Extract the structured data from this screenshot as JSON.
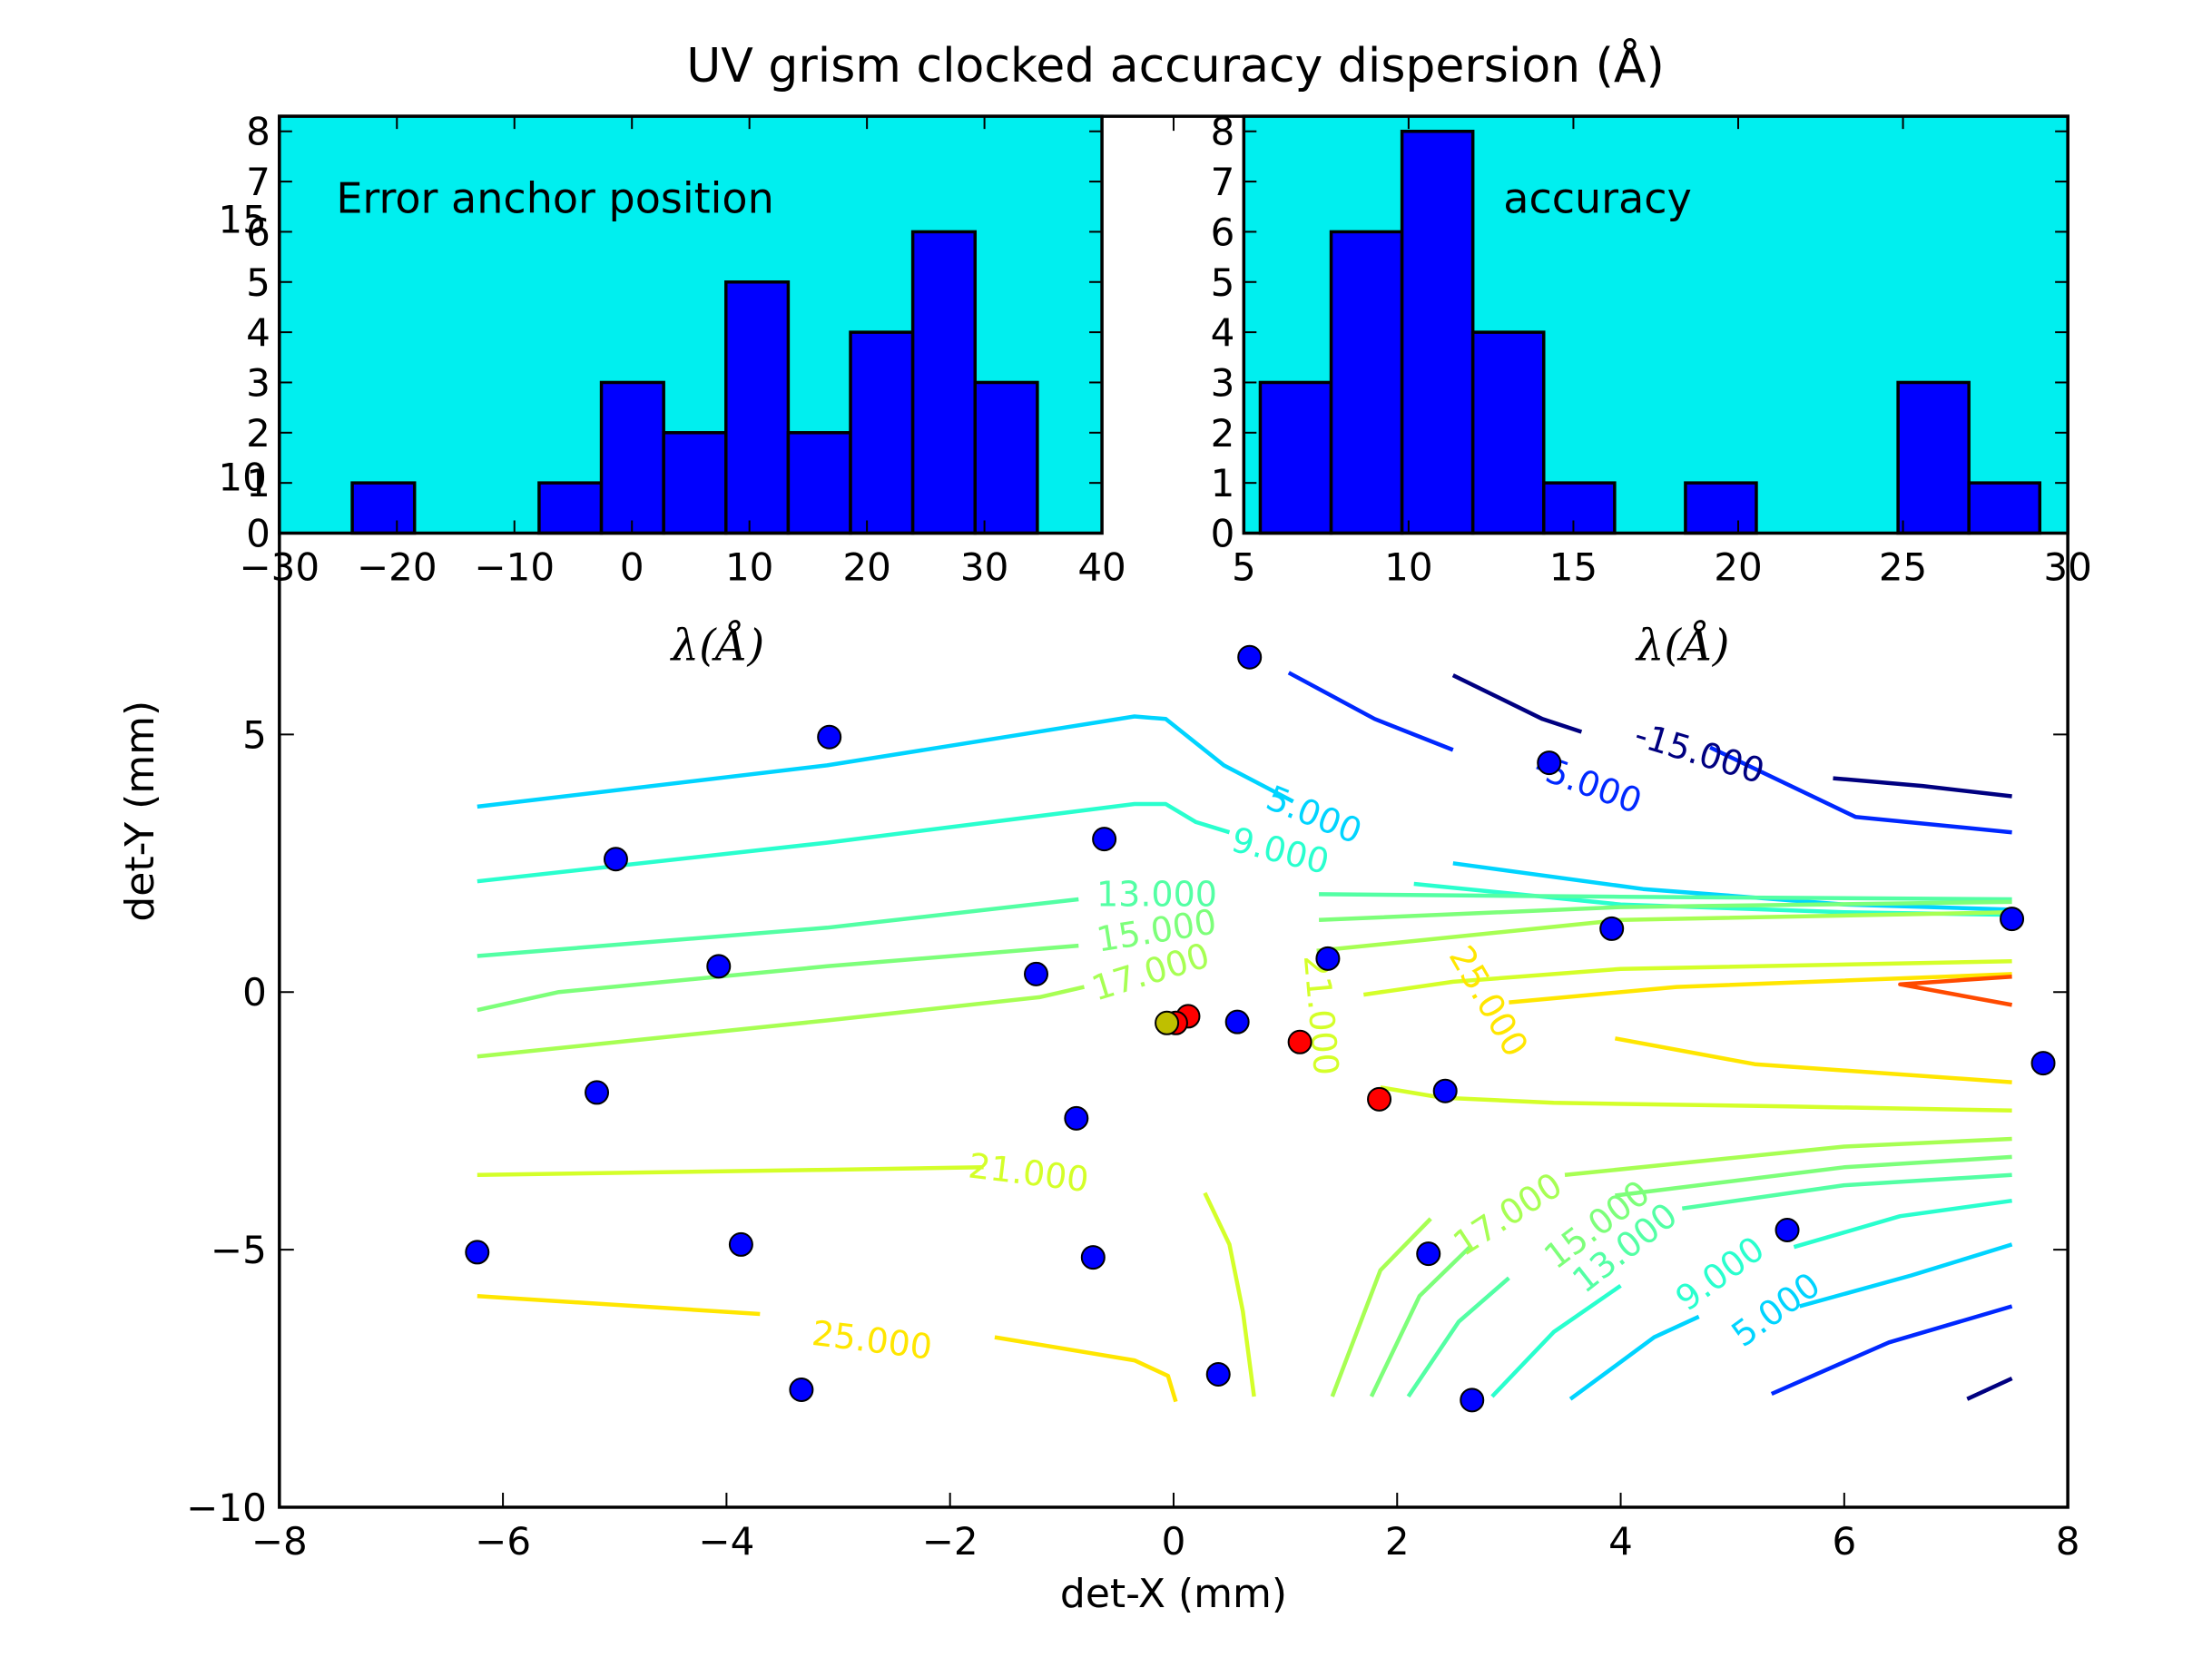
{
  "chart_data": [
    {
      "id": "main",
      "type": "scatter",
      "title": "UV grism clocked accuracy dispersion (Å)",
      "xlabel": "det-X (mm)",
      "ylabel": "det-Y (mm)",
      "xlim": [
        -8,
        8
      ],
      "ylim": [
        -10,
        17
      ],
      "xticks": [
        -8,
        -6,
        -4,
        -2,
        0,
        2,
        4,
        6,
        8
      ],
      "xtick_labels": [
        "−8",
        "−6",
        "−4",
        "−2",
        "0",
        "2",
        "4",
        "6",
        "8"
      ],
      "yticks": [
        -10,
        -5,
        0,
        5,
        10,
        15
      ],
      "ytick_labels": [
        "−10",
        "−5",
        "0",
        "5",
        "10",
        "15"
      ],
      "grid": false,
      "series": [
        {
          "name": "blue points",
          "color": "#0000ff",
          "points": [
            [
              0.68,
              6.5
            ],
            [
              -3.08,
              4.95
            ],
            [
              3.36,
              4.45
            ],
            [
              -0.62,
              2.97
            ],
            [
              -4.99,
              2.58
            ],
            [
              3.92,
              1.23
            ],
            [
              7.5,
              1.42
            ],
            [
              -4.07,
              0.5
            ],
            [
              -1.23,
              0.35
            ],
            [
              1.38,
              0.65
            ],
            [
              0.57,
              -0.58
            ],
            [
              7.78,
              -1.38
            ],
            [
              -5.16,
              -1.95
            ],
            [
              2.43,
              -1.92
            ],
            [
              -0.87,
              -2.45
            ],
            [
              -6.23,
              -5.05
            ],
            [
              -3.87,
              -4.9
            ],
            [
              -0.72,
              -5.15
            ],
            [
              2.28,
              -5.08
            ],
            [
              5.49,
              -4.62
            ],
            [
              -3.33,
              -7.72
            ],
            [
              0.4,
              -7.42
            ],
            [
              2.67,
              -7.92
            ]
          ]
        },
        {
          "name": "red points",
          "color": "#ff0000",
          "points": [
            [
              0.13,
              -0.47
            ],
            [
              0.02,
              -0.6
            ],
            [
              1.13,
              -0.97
            ],
            [
              1.84,
              -2.08
            ]
          ]
        },
        {
          "name": "olive point",
          "color": "#bfbf00",
          "points": [
            [
              -0.06,
              -0.6
            ]
          ]
        }
      ],
      "contours": [
        {
          "level": -15,
          "label": "-15.000",
          "color": "#000080",
          "segments": [
            [
              [
                2.5,
                6.15
              ],
              [
                3.3,
                5.3
              ],
              [
                3.65,
                5.05
              ]
            ],
            [
              [
                5.9,
                4.15
              ],
              [
                6.7,
                4.0
              ],
              [
                7.5,
                3.8
              ]
            ],
            [
              [
                7.1,
                -7.9
              ],
              [
                7.5,
                -7.5
              ]
            ]
          ]
        },
        {
          "level": -5,
          "label": "-5.000",
          "color": "#0028ff",
          "segments": [
            [
              [
                1.03,
                6.2
              ],
              [
                1.8,
                5.3
              ],
              [
                2.5,
                4.7
              ]
            ],
            [
              [
                4.8,
                4.75
              ],
              [
                6.1,
                3.4
              ],
              [
                7.5,
                3.1
              ]
            ],
            [
              [
                5.35,
                -7.8
              ],
              [
                6.4,
                -6.8
              ],
              [
                7.5,
                -6.1
              ]
            ]
          ]
        },
        {
          "level": 5,
          "label": "5.000",
          "color": "#00d4ff",
          "segments": [
            [
              [
                -6.23,
                3.6
              ],
              [
                -3.1,
                4.4
              ],
              [
                -0.35,
                5.35
              ],
              [
                -0.07,
                5.3
              ],
              [
                0.45,
                4.4
              ],
              [
                1.07,
                3.7
              ]
            ],
            [
              [
                2.5,
                2.5
              ],
              [
                4.2,
                2.0
              ],
              [
                6.0,
                1.7
              ],
              [
                7.5,
                1.6
              ]
            ],
            [
              [
                3.55,
                -7.9
              ],
              [
                4.3,
                -6.7
              ],
              [
                4.7,
                -6.3
              ]
            ],
            [
              [
                5.6,
                -6.1
              ],
              [
                6.6,
                -5.5
              ],
              [
                7.5,
                -4.9
              ]
            ]
          ]
        },
        {
          "level": 9,
          "label": "9.000",
          "color": "#29ffce",
          "segments": [
            [
              [
                -6.23,
                2.15
              ],
              [
                -3.1,
                2.9
              ],
              [
                -0.35,
                3.65
              ],
              [
                -0.07,
                3.65
              ],
              [
                0.2,
                3.3
              ],
              [
                0.5,
                3.1
              ]
            ],
            [
              [
                2.15,
                2.1
              ],
              [
                4.0,
                1.7
              ],
              [
                6.0,
                1.55
              ],
              [
                7.5,
                1.5
              ]
            ],
            [
              [
                2.85,
                -7.85
              ],
              [
                3.4,
                -6.6
              ],
              [
                4.0,
                -5.7
              ]
            ],
            [
              [
                5.55,
                -4.95
              ],
              [
                6.5,
                -4.35
              ],
              [
                7.5,
                -4.05
              ]
            ]
          ]
        },
        {
          "level": 13,
          "label": "13.000",
          "color": "#53ffa4",
          "segments": [
            [
              [
                -6.23,
                0.7
              ],
              [
                -3.1,
                1.25
              ],
              [
                -0.85,
                1.8
              ]
            ],
            [
              [
                1.3,
                1.9
              ],
              [
                4.0,
                1.85
              ],
              [
                7.5,
                1.8
              ]
            ],
            [
              [
                2.1,
                -7.85
              ],
              [
                2.55,
                -6.4
              ],
              [
                3.0,
                -5.55
              ]
            ],
            [
              [
                4.55,
                -4.2
              ],
              [
                6.0,
                -3.75
              ],
              [
                7.5,
                -3.55
              ]
            ]
          ]
        },
        {
          "level": 15,
          "label": "15.000",
          "color": "#7dff7a",
          "segments": [
            [
              [
                -6.23,
                -0.35
              ],
              [
                -5.5,
                0.0
              ],
              [
                -3.1,
                0.5
              ],
              [
                -0.85,
                0.9
              ]
            ],
            [
              [
                1.3,
                1.4
              ],
              [
                4.0,
                1.65
              ],
              [
                7.5,
                1.75
              ]
            ],
            [
              [
                1.77,
                -7.85
              ],
              [
                2.2,
                -5.9
              ],
              [
                2.65,
                -4.95
              ]
            ],
            [
              [
                3.95,
                -3.95
              ],
              [
                6.0,
                -3.4
              ],
              [
                7.5,
                -3.2
              ]
            ]
          ]
        },
        {
          "level": 17,
          "label": "17.000",
          "color": "#a7ff53",
          "segments": [
            [
              [
                -6.23,
                -1.25
              ],
              [
                -3.1,
                -0.55
              ],
              [
                -1.2,
                -0.1
              ],
              [
                -0.8,
                0.1
              ]
            ],
            [
              [
                1.28,
                0.8
              ],
              [
                4.0,
                1.4
              ],
              [
                7.5,
                1.55
              ]
            ],
            [
              [
                1.42,
                -7.85
              ],
              [
                1.85,
                -5.4
              ],
              [
                2.3,
                -4.4
              ]
            ],
            [
              [
                3.5,
                -3.55
              ],
              [
                6.0,
                -3.0
              ],
              [
                7.5,
                -2.85
              ]
            ]
          ]
        },
        {
          "level": 21,
          "label": "21.000",
          "color": "#d4ff29",
          "segments": [
            [
              [
                -6.23,
                -3.55
              ],
              [
                -3.1,
                -3.45
              ],
              [
                -1.7,
                -3.4
              ]
            ],
            [
              [
                0.28,
                -3.9
              ],
              [
                0.5,
                -4.9
              ],
              [
                0.62,
                -6.2
              ],
              [
                0.72,
                -7.85
              ]
            ],
            [
              [
                0.0,
                -7.85
              ],
              [
                0.0,
                -7.85
              ]
            ],
            [
              [
                1.7,
                -0.05
              ],
              [
                2.5,
                0.2
              ],
              [
                4.0,
                0.45
              ],
              [
                7.5,
                0.6
              ]
            ],
            [
              [
                1.85,
                -1.85
              ],
              [
                2.4,
                -2.05
              ],
              [
                3.4,
                -2.15
              ],
              [
                5.5,
                -2.22
              ],
              [
                7.5,
                -2.3
              ]
            ]
          ]
        },
        {
          "level": 25,
          "label": "25.000",
          "color": "#ffe600",
          "segments": [
            [
              [
                -6.23,
                -5.9
              ],
              [
                -3.7,
                -6.25
              ]
            ],
            [
              [
                -1.6,
                -6.7
              ],
              [
                -0.35,
                -7.15
              ],
              [
                -0.05,
                -7.45
              ],
              [
                0.02,
                -7.95
              ]
            ],
            [
              [
                3.0,
                -0.2
              ],
              [
                4.5,
                0.1
              ],
              [
                7.5,
                0.35
              ]
            ],
            [
              [
                3.95,
                -0.9
              ],
              [
                5.2,
                -1.4
              ],
              [
                7.5,
                -1.75
              ]
            ]
          ]
        },
        {
          "level": 29,
          "label": "",
          "color": "#ff4a00",
          "segments": [
            [
              [
                7.5,
                0.3
              ],
              [
                6.5,
                0.15
              ],
              [
                7.5,
                -0.25
              ]
            ]
          ]
        }
      ],
      "contour_labels": [
        {
          "text": "-15.000",
          "x": 4.7,
          "y": 4.6,
          "angle": 17,
          "color": "#000080"
        },
        {
          "text": "-5.000",
          "x": 3.7,
          "y": 4.0,
          "angle": 20,
          "color": "#0028ff"
        },
        {
          "text": "5.000",
          "x": 1.25,
          "y": 3.4,
          "angle": 22,
          "color": "#00d4ff"
        },
        {
          "text": "9.000",
          "x": 0.95,
          "y": 2.7,
          "angle": 14,
          "color": "#29ffce"
        },
        {
          "text": "13.000",
          "x": -0.15,
          "y": 1.85,
          "angle": 0,
          "color": "#53ffa4"
        },
        {
          "text": "15.000",
          "x": -0.15,
          "y": 1.15,
          "angle": -9,
          "color": "#7dff7a"
        },
        {
          "text": "17.000",
          "x": -0.2,
          "y": 0.35,
          "angle": -17,
          "color": "#a7ff53"
        },
        {
          "text": "21.000",
          "x": 1.3,
          "y": -0.45,
          "angle": 85,
          "color": "#d4ff29"
        },
        {
          "text": "25.000",
          "x": 2.8,
          "y": -0.2,
          "angle": 60,
          "color": "#ffe600"
        },
        {
          "text": "21.000",
          "x": -1.3,
          "y": -3.55,
          "angle": 7,
          "color": "#d4ff29"
        },
        {
          "text": "25.000",
          "x": -2.7,
          "y": -6.8,
          "angle": 7,
          "color": "#ffe600"
        },
        {
          "text": "17.000",
          "x": 3.0,
          "y": -4.35,
          "angle": -33,
          "color": "#a7ff53"
        },
        {
          "text": "15.000",
          "x": 3.8,
          "y": -4.55,
          "angle": -37,
          "color": "#7dff7a"
        },
        {
          "text": "13.000",
          "x": 4.05,
          "y": -5.0,
          "angle": -38,
          "color": "#53ffa4"
        },
        {
          "text": "9.000",
          "x": 4.9,
          "y": -5.5,
          "angle": -36,
          "color": "#29ffce"
        },
        {
          "text": "5.000",
          "x": 5.4,
          "y": -6.2,
          "angle": -36,
          "color": "#00d4ff"
        }
      ]
    },
    {
      "id": "hist-anchor",
      "type": "bar",
      "annotation": "Error anchor position",
      "xlabel": "λ(Å)",
      "ylabel": "",
      "xlim": [
        -30,
        40
      ],
      "ylim": [
        0,
        8.3
      ],
      "face_color": "#00efef",
      "bar_color": "#0000ff",
      "xticks": [
        -30,
        -20,
        -10,
        0,
        10,
        20,
        30,
        40
      ],
      "xtick_labels": [
        "−30",
        "−20",
        "−10",
        "0",
        "10",
        "20",
        "30",
        "40"
      ],
      "yticks": [
        0,
        1,
        2,
        3,
        4,
        5,
        6,
        7,
        8
      ],
      "ytick_labels": [
        "0",
        "1",
        "2",
        "3",
        "4",
        "5",
        "6",
        "7",
        "8"
      ],
      "bin_edges": [
        -23.8,
        -18.5,
        -13.2,
        -7.9,
        -2.6,
        2.7,
        8.0,
        13.3,
        18.6,
        23.9,
        29.2,
        34.5
      ],
      "values": [
        1,
        0,
        0,
        1,
        3,
        2,
        5,
        2,
        4,
        6,
        3
      ]
    },
    {
      "id": "hist-accuracy",
      "type": "bar",
      "annotation": "accuracy",
      "xlabel": "λ(Å)",
      "ylabel": "",
      "xlim": [
        5,
        30
      ],
      "ylim": [
        0,
        8.3
      ],
      "face_color": "#00efef",
      "bar_color": "#0000ff",
      "xticks": [
        5,
        10,
        15,
        20,
        25,
        30
      ],
      "xtick_labels": [
        "5",
        "10",
        "15",
        "20",
        "25",
        "30"
      ],
      "yticks": [
        0,
        1,
        2,
        3,
        4,
        5,
        6,
        7,
        8
      ],
      "ytick_labels": [
        "0",
        "1",
        "2",
        "3",
        "4",
        "5",
        "6",
        "7",
        "8"
      ],
      "bin_edges": [
        5.5,
        7.65,
        9.8,
        11.95,
        14.1,
        16.25,
        18.4,
        20.55,
        22.7,
        24.85,
        27.0,
        29.15
      ],
      "values": [
        3,
        6,
        8,
        4,
        1,
        0,
        1,
        0,
        0,
        3,
        1
      ]
    }
  ]
}
